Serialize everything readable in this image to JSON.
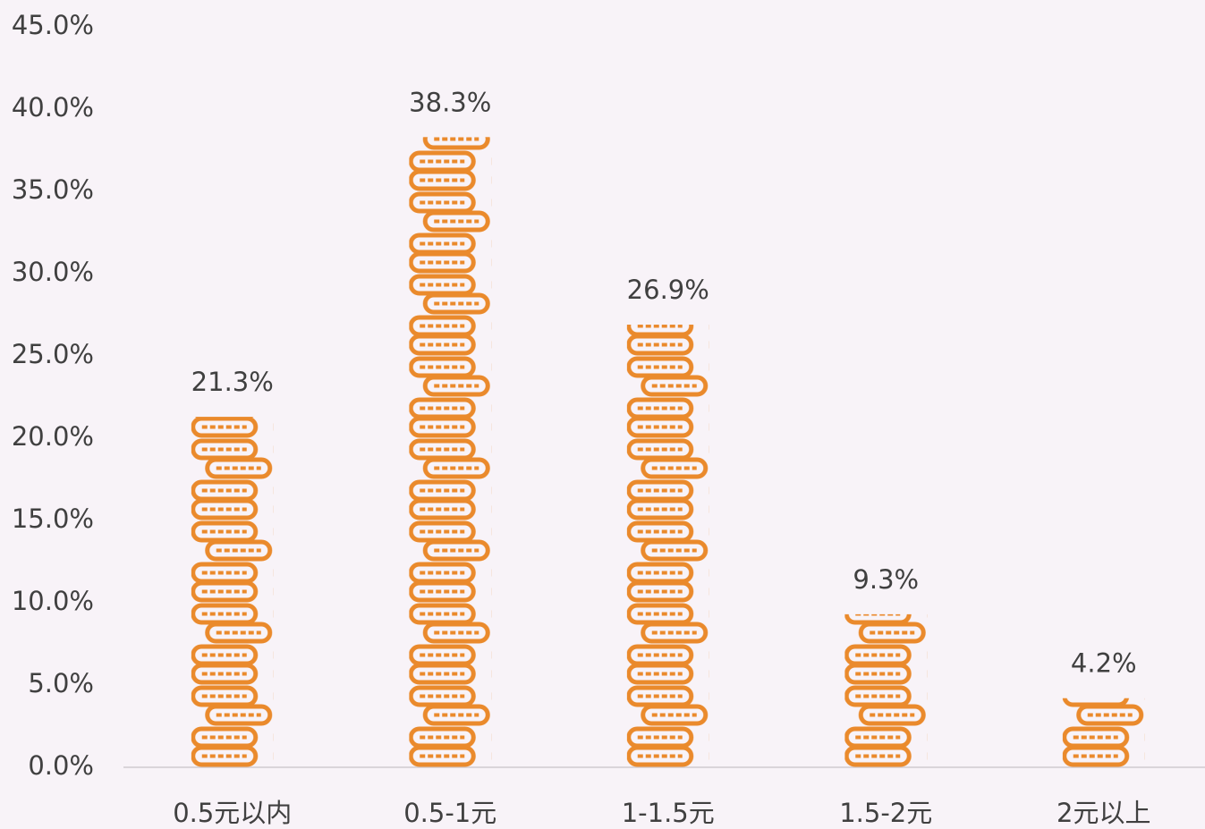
{
  "chart_data": {
    "type": "bar",
    "categories": [
      "0.5元以内",
      "0.5-1元",
      "1-1.5元",
      "1.5-2元",
      "2元以上"
    ],
    "values": [
      21.3,
      38.3,
      26.9,
      9.3,
      4.2
    ],
    "value_labels": [
      "21.3%",
      "38.3%",
      "26.9%",
      "9.3%",
      "4.2%"
    ],
    "color": "#ea8a2c",
    "ylim": [
      0,
      45
    ],
    "yticks": [
      {
        "value": 0,
        "label": "0.0%"
      },
      {
        "value": 5,
        "label": "5.0%"
      },
      {
        "value": 10,
        "label": "10.0%"
      },
      {
        "value": 15,
        "label": "15.0%"
      },
      {
        "value": 20,
        "label": "20.0%"
      },
      {
        "value": 25,
        "label": "25.0%"
      },
      {
        "value": 30,
        "label": "30.0%"
      },
      {
        "value": 35,
        "label": "35.0%"
      },
      {
        "value": 40,
        "label": "40.0%"
      },
      {
        "value": 45,
        "label": "45.0%"
      }
    ]
  }
}
